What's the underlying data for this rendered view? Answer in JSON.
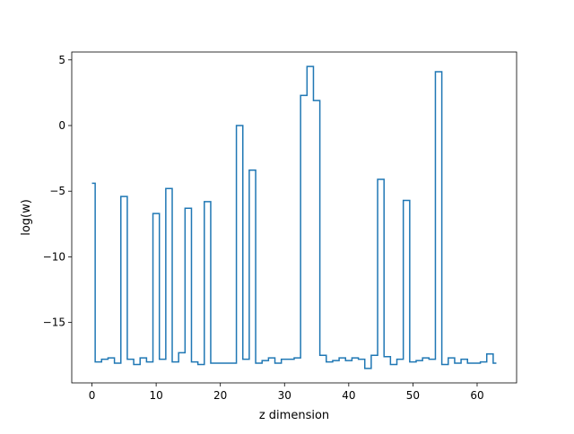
{
  "chart_data": {
    "type": "line",
    "drawstyle": "steps-mid",
    "title": "",
    "xlabel": "z dimension",
    "ylabel": "log(w)",
    "xlim": [
      -3.15,
      66.15
    ],
    "ylim": [
      -19.6,
      5.6
    ],
    "xticks": [
      0,
      10,
      20,
      30,
      40,
      50,
      60
    ],
    "yticks": [
      5,
      0,
      -5,
      -10,
      -15
    ],
    "ytick_labels": [
      "5",
      "0",
      "−5",
      "−10",
      "−15"
    ],
    "grid": false,
    "color": "#1f77b4",
    "x": [
      0,
      1,
      2,
      3,
      4,
      5,
      6,
      7,
      8,
      9,
      10,
      11,
      12,
      13,
      14,
      15,
      16,
      17,
      18,
      19,
      20,
      21,
      22,
      23,
      24,
      25,
      26,
      27,
      28,
      29,
      30,
      31,
      32,
      33,
      34,
      35,
      36,
      37,
      38,
      39,
      40,
      41,
      42,
      43,
      44,
      45,
      46,
      47,
      48,
      49,
      50,
      51,
      52,
      53,
      54,
      55,
      56,
      57,
      58,
      59,
      60,
      61,
      62,
      63
    ],
    "values": [
      -4.4,
      -18.0,
      -17.8,
      -17.7,
      -18.1,
      -5.4,
      -17.8,
      -18.2,
      -17.7,
      -18.0,
      -6.7,
      -17.8,
      -4.8,
      -18.0,
      -17.3,
      -6.3,
      -18.0,
      -18.2,
      -5.8,
      -18.1,
      -18.1,
      -18.1,
      -18.1,
      0.0,
      -17.8,
      -3.4,
      -18.1,
      -17.9,
      -17.7,
      -18.1,
      -17.8,
      -17.8,
      -17.7,
      2.3,
      4.5,
      1.9,
      -17.5,
      -18.0,
      -17.9,
      -17.7,
      -17.9,
      -17.7,
      -17.8,
      -18.5,
      -17.5,
      -4.1,
      -17.6,
      -18.2,
      -17.8,
      -5.7,
      -18.0,
      -17.9,
      -17.7,
      -17.8,
      4.1,
      -18.2,
      -17.7,
      -18.1,
      -17.8,
      -18.1,
      -18.1,
      -18.0,
      -17.4,
      -18.1
    ]
  }
}
